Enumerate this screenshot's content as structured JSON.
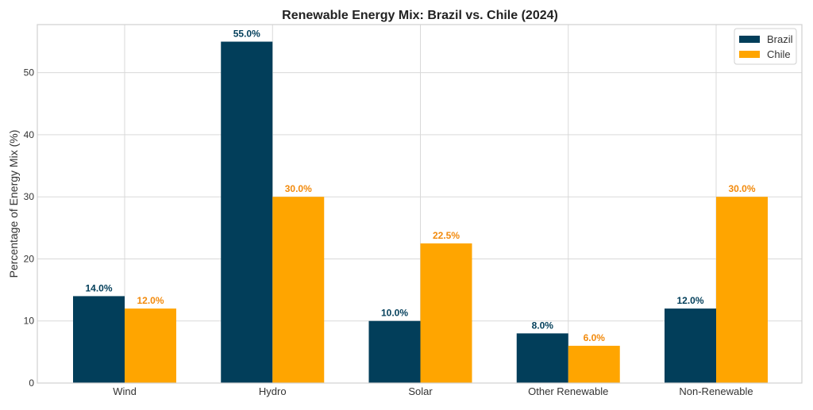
{
  "chart_data": {
    "type": "bar",
    "title": "Renewable Energy Mix: Brazil vs. Chile (2024)",
    "xlabel": "",
    "ylabel": "Percentage of Energy Mix (%)",
    "categories": [
      "Wind",
      "Hydro",
      "Solar",
      "Other Renewable",
      "Non-Renewable"
    ],
    "series": [
      {
        "name": "Brazil",
        "color": "#023e5a",
        "label_color": "#023e5a",
        "values": [
          14.0,
          55.0,
          10.0,
          8.0,
          12.0
        ]
      },
      {
        "name": "Chile",
        "color": "#ffa500",
        "label_color": "#f28a0c",
        "values": [
          12.0,
          30.0,
          22.5,
          6.0,
          30.0
        ]
      }
    ],
    "data_labels": [
      [
        "14.0%",
        "55.0%",
        "10.0%",
        "8.0%",
        "12.0%"
      ],
      [
        "12.0%",
        "30.0%",
        "22.5%",
        "6.0%",
        "30.0%"
      ]
    ],
    "ylim": [
      0,
      57.75
    ],
    "yticks": [
      0,
      10,
      20,
      30,
      40,
      50
    ],
    "grid": true,
    "legend": "top-right"
  }
}
